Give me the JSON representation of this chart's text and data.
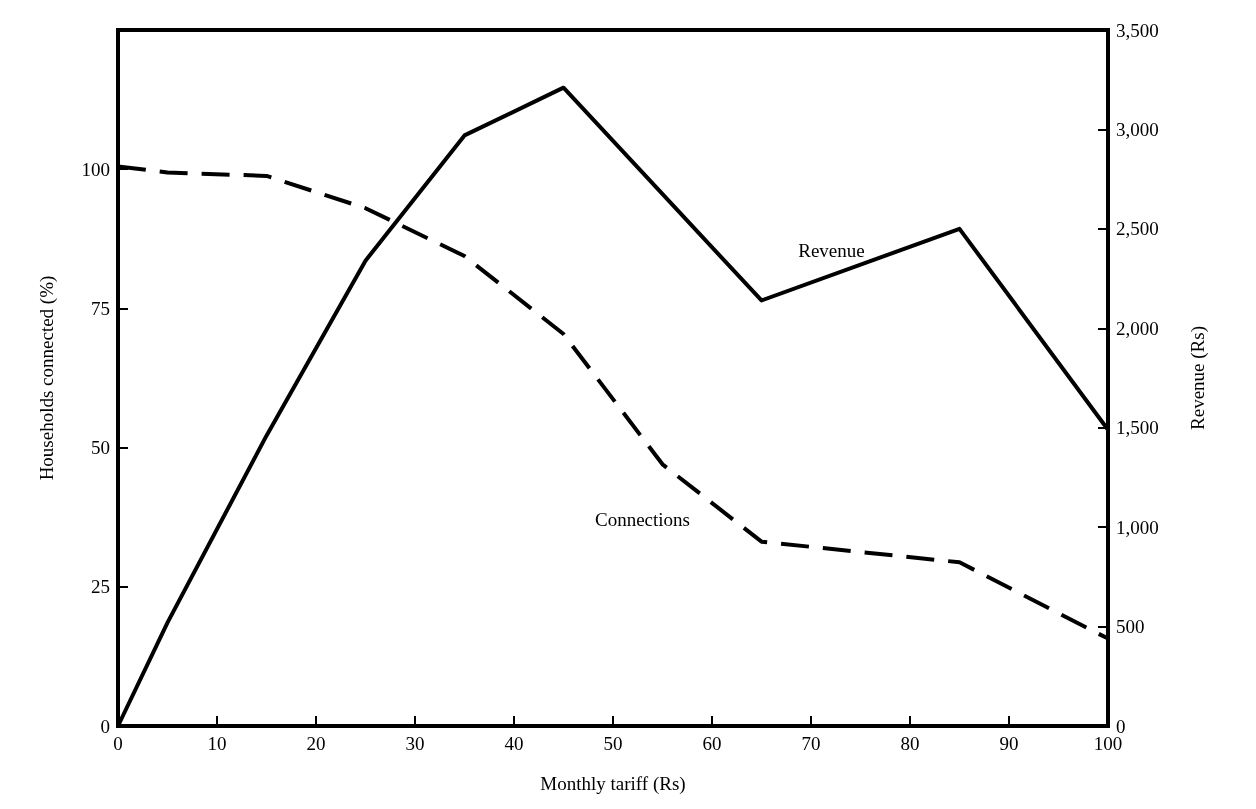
{
  "chart_data": {
    "type": "line",
    "xlabel": "Monthly tariff (Rs)",
    "ylabel": "Households connected (%)",
    "y2label": "Revenue (Rs)",
    "xlim": [
      0,
      100
    ],
    "xticks": [
      0,
      10,
      20,
      30,
      40,
      50,
      60,
      70,
      80,
      90,
      100
    ],
    "ylim": [
      0,
      125
    ],
    "yticks": [
      0,
      25,
      50,
      75,
      100
    ],
    "y2lim": [
      0,
      3500
    ],
    "y2ticks": [
      {
        "value": 0,
        "label": "0"
      },
      {
        "value": 500,
        "label": "500"
      },
      {
        "value": 1000,
        "label": "1,000"
      },
      {
        "value": 1500,
        "label": "1,500"
      },
      {
        "value": 2000,
        "label": "2,000"
      },
      {
        "value": 2500,
        "label": "2,500"
      },
      {
        "value": 3000,
        "label": "3,000"
      },
      {
        "value": 3500,
        "label": "3,500"
      }
    ],
    "grid": false,
    "legend": false,
    "marker": "none",
    "series": [
      {
        "name": "Revenue",
        "color": "#000000",
        "axis": "y2",
        "line_style": "solid",
        "x": [
          0,
          5,
          15,
          25,
          35,
          45,
          65,
          85,
          100
        ],
        "values": [
          0,
          520,
          1460,
          2340,
          2970,
          3210,
          2140,
          2500,
          1490
        ]
      },
      {
        "name": "Connections",
        "color": "#000000",
        "axis": "y",
        "line_style": "dashed",
        "x": [
          0,
          5,
          15,
          25,
          35,
          45,
          55,
          65,
          85,
          100
        ],
        "values": [
          100.5,
          99.4,
          98.8,
          93,
          84.4,
          70.4,
          47,
          33.1,
          29.4,
          15.7
        ]
      }
    ]
  }
}
